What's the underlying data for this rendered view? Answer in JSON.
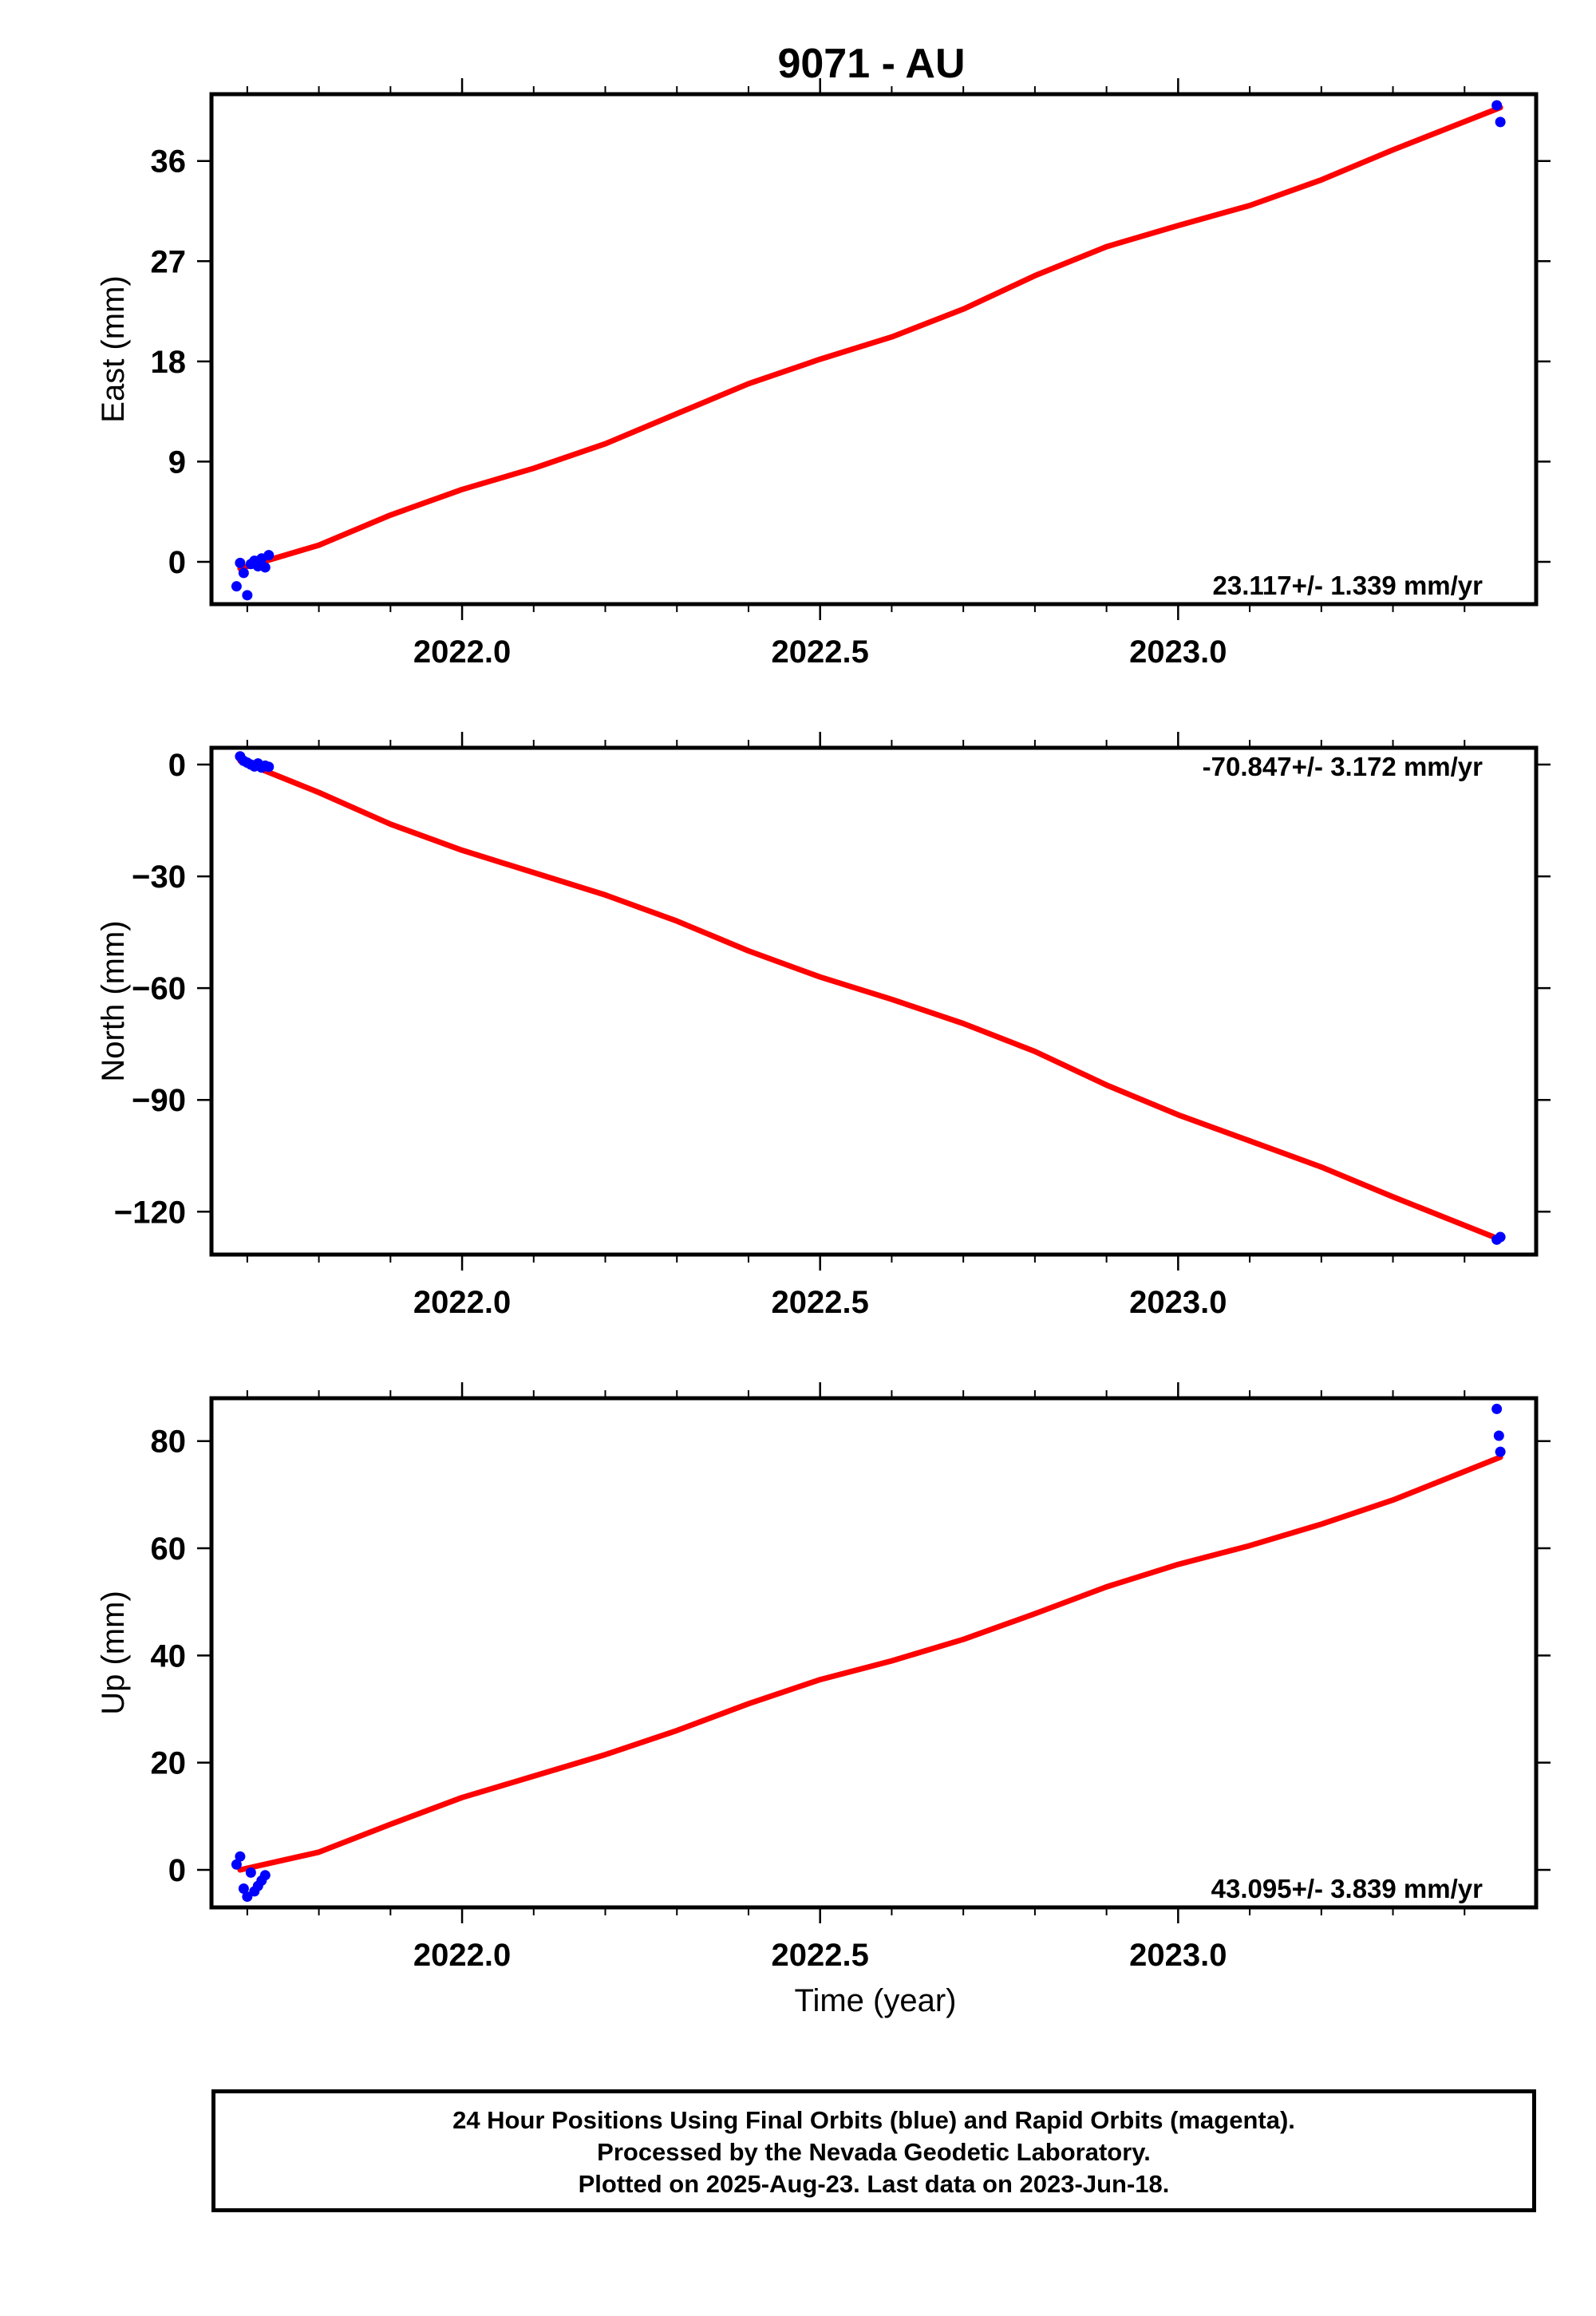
{
  "title": "9071 - AU",
  "footer": {
    "line1": "24 Hour Positions Using Final Orbits (blue) and Rapid Orbits (magenta).",
    "line2": "Processed by the Nevada Geodetic Laboratory.",
    "line3": "Plotted on 2025-Aug-23. Last data on 2023-Jun-18."
  },
  "colors": {
    "final_orbits": "#0000ff",
    "fit_line": "#ff0000",
    "frame": "#000000"
  },
  "chart_data": [
    {
      "type": "scatter",
      "ylabel": "East (mm)",
      "xlabel": "",
      "xlim": [
        2021.65,
        2023.5
      ],
      "ylim": [
        -3.8,
        42.0
      ],
      "yticks": [
        0,
        9,
        18,
        27,
        36
      ],
      "xticks": [
        2022.0,
        2022.5,
        2023.0
      ],
      "annotation": "23.117+/- 1.339 mm/yr",
      "annotation_position": "bottom-right",
      "points": [
        {
          "x": 2021.685,
          "y": -2.2
        },
        {
          "x": 2021.69,
          "y": -0.1
        },
        {
          "x": 2021.695,
          "y": -1.0
        },
        {
          "x": 2021.7,
          "y": -3.0
        },
        {
          "x": 2021.705,
          "y": -0.2
        },
        {
          "x": 2021.71,
          "y": 0.1
        },
        {
          "x": 2021.715,
          "y": -0.4
        },
        {
          "x": 2021.72,
          "y": 0.3
        },
        {
          "x": 2021.725,
          "y": -0.5
        },
        {
          "x": 2021.73,
          "y": 0.6
        },
        {
          "x": 2023.445,
          "y": 41.0
        },
        {
          "x": 2023.45,
          "y": 39.5
        }
      ],
      "fit": [
        {
          "x": 2021.69,
          "y": -0.6
        },
        {
          "x": 2021.8,
          "y": 1.5
        },
        {
          "x": 2021.9,
          "y": 4.2
        },
        {
          "x": 2022.0,
          "y": 6.5
        },
        {
          "x": 2022.1,
          "y": 8.4
        },
        {
          "x": 2022.2,
          "y": 10.6
        },
        {
          "x": 2022.3,
          "y": 13.3
        },
        {
          "x": 2022.4,
          "y": 16.0
        },
        {
          "x": 2022.5,
          "y": 18.2
        },
        {
          "x": 2022.6,
          "y": 20.2
        },
        {
          "x": 2022.7,
          "y": 22.7
        },
        {
          "x": 2022.8,
          "y": 25.7
        },
        {
          "x": 2022.9,
          "y": 28.3
        },
        {
          "x": 2023.0,
          "y": 30.2
        },
        {
          "x": 2023.1,
          "y": 32.0
        },
        {
          "x": 2023.2,
          "y": 34.3
        },
        {
          "x": 2023.3,
          "y": 37.0
        },
        {
          "x": 2023.45,
          "y": 40.8
        }
      ]
    },
    {
      "type": "scatter",
      "ylabel": "North (mm)",
      "xlabel": "",
      "xlim": [
        2021.65,
        2023.5
      ],
      "ylim": [
        -131.5,
        4.5
      ],
      "yticks": [
        0,
        -30,
        -60,
        -90,
        -120
      ],
      "xticks": [
        2022.0,
        2022.5,
        2023.0
      ],
      "annotation": "-70.847+/- 3.172 mm/yr",
      "annotation_position": "top-right",
      "points": [
        {
          "x": 2021.69,
          "y": 2.2
        },
        {
          "x": 2021.695,
          "y": 1.0
        },
        {
          "x": 2021.7,
          "y": 0.5
        },
        {
          "x": 2021.705,
          "y": 0.0
        },
        {
          "x": 2021.71,
          "y": -0.5
        },
        {
          "x": 2021.715,
          "y": 0.3
        },
        {
          "x": 2021.72,
          "y": -0.8
        },
        {
          "x": 2021.725,
          "y": -0.3
        },
        {
          "x": 2021.73,
          "y": -0.6
        },
        {
          "x": 2023.445,
          "y": -127.5
        },
        {
          "x": 2023.45,
          "y": -126.8
        }
      ],
      "fit": [
        {
          "x": 2021.69,
          "y": 1.0
        },
        {
          "x": 2021.8,
          "y": -7.5
        },
        {
          "x": 2021.9,
          "y": -16.0
        },
        {
          "x": 2022.0,
          "y": -23.0
        },
        {
          "x": 2022.1,
          "y": -29.0
        },
        {
          "x": 2022.2,
          "y": -35.0
        },
        {
          "x": 2022.3,
          "y": -42.0
        },
        {
          "x": 2022.4,
          "y": -50.0
        },
        {
          "x": 2022.5,
          "y": -57.0
        },
        {
          "x": 2022.6,
          "y": -63.0
        },
        {
          "x": 2022.7,
          "y": -69.5
        },
        {
          "x": 2022.8,
          "y": -77.0
        },
        {
          "x": 2022.9,
          "y": -86.0
        },
        {
          "x": 2023.0,
          "y": -94.0
        },
        {
          "x": 2023.1,
          "y": -101.0
        },
        {
          "x": 2023.2,
          "y": -108.0
        },
        {
          "x": 2023.3,
          "y": -116.0
        },
        {
          "x": 2023.45,
          "y": -127.5
        }
      ]
    },
    {
      "type": "scatter",
      "ylabel": "Up (mm)",
      "xlabel": "Time (year)",
      "xlim": [
        2021.65,
        2023.5
      ],
      "ylim": [
        -7.0,
        88.0
      ],
      "yticks": [
        0,
        20,
        40,
        60,
        80
      ],
      "xticks": [
        2022.0,
        2022.5,
        2023.0
      ],
      "annotation": "43.095+/- 3.839 mm/yr",
      "annotation_position": "bottom-right",
      "points": [
        {
          "x": 2021.685,
          "y": 1.0
        },
        {
          "x": 2021.69,
          "y": 2.5
        },
        {
          "x": 2021.695,
          "y": -3.5
        },
        {
          "x": 2021.7,
          "y": -5.0
        },
        {
          "x": 2021.705,
          "y": -0.5
        },
        {
          "x": 2021.71,
          "y": -4.0
        },
        {
          "x": 2021.715,
          "y": -3.0
        },
        {
          "x": 2021.72,
          "y": -2.0
        },
        {
          "x": 2021.725,
          "y": -1.0
        },
        {
          "x": 2023.445,
          "y": 86.0
        },
        {
          "x": 2023.448,
          "y": 81.0
        },
        {
          "x": 2023.45,
          "y": 78.0
        }
      ],
      "fit": [
        {
          "x": 2021.69,
          "y": 0.0
        },
        {
          "x": 2021.8,
          "y": 3.3
        },
        {
          "x": 2021.9,
          "y": 8.5
        },
        {
          "x": 2022.0,
          "y": 13.5
        },
        {
          "x": 2022.1,
          "y": 17.5
        },
        {
          "x": 2022.2,
          "y": 21.5
        },
        {
          "x": 2022.3,
          "y": 26.0
        },
        {
          "x": 2022.4,
          "y": 31.0
        },
        {
          "x": 2022.5,
          "y": 35.5
        },
        {
          "x": 2022.6,
          "y": 39.0
        },
        {
          "x": 2022.7,
          "y": 43.0
        },
        {
          "x": 2022.8,
          "y": 47.8
        },
        {
          "x": 2022.9,
          "y": 52.8
        },
        {
          "x": 2023.0,
          "y": 57.0
        },
        {
          "x": 2023.1,
          "y": 60.5
        },
        {
          "x": 2023.2,
          "y": 64.5
        },
        {
          "x": 2023.3,
          "y": 69.0
        },
        {
          "x": 2023.45,
          "y": 77.0
        }
      ]
    }
  ]
}
